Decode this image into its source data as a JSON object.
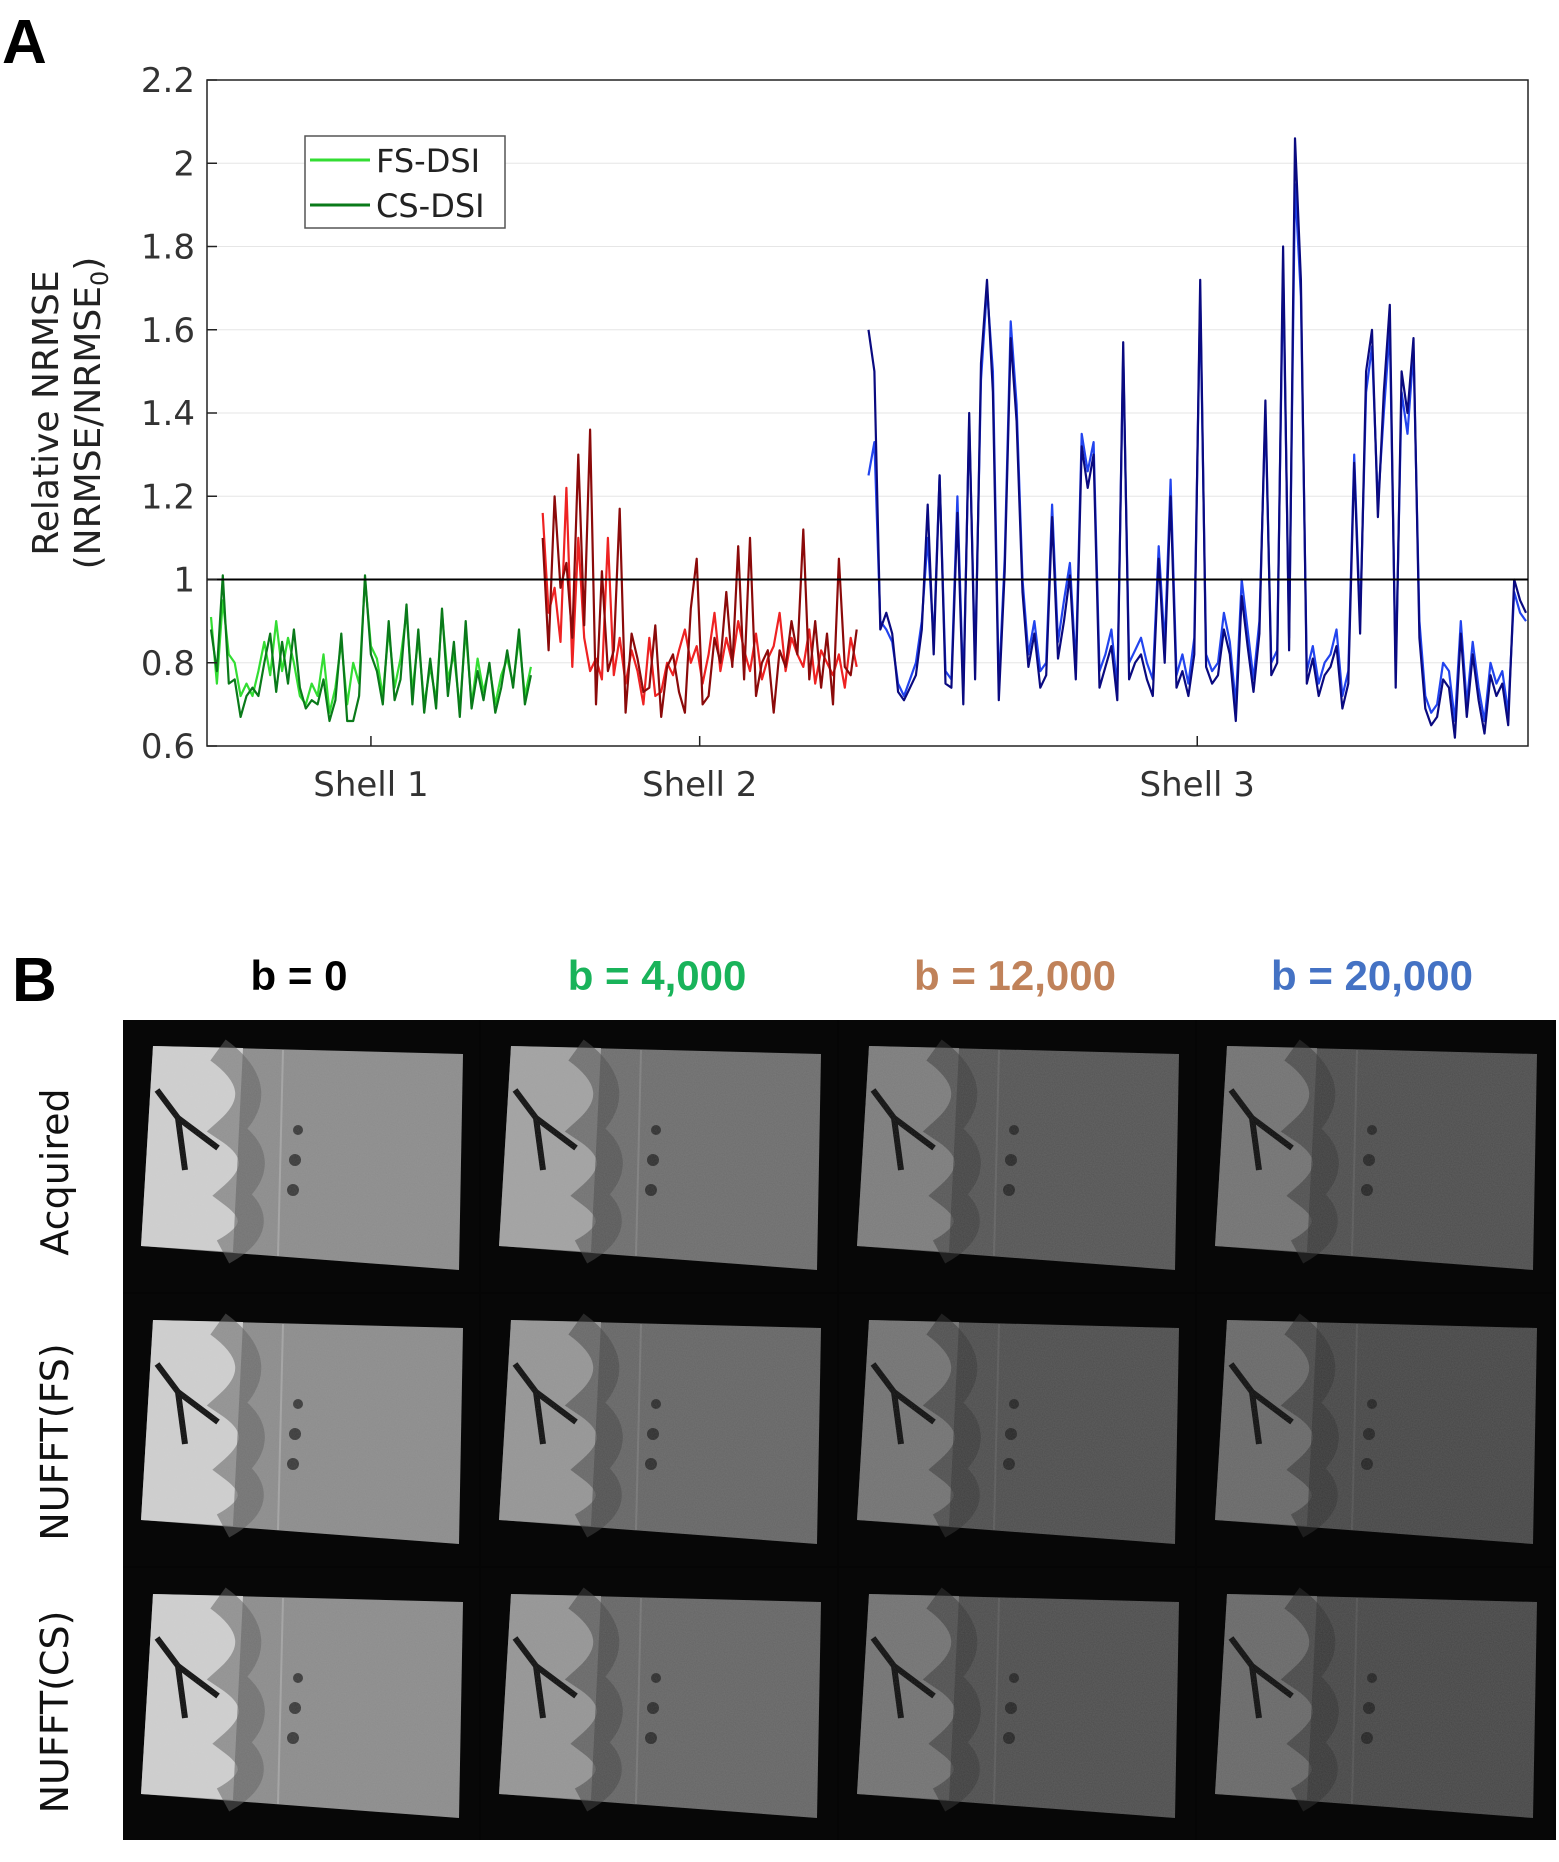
{
  "panel_a_label": "A",
  "panel_b_label": "B",
  "chart_data": {
    "type": "line",
    "xlabel": "",
    "ylabel_line1": "Relative NRMSE",
    "ylabel_line2_main": "(NRMSE/NRMSE",
    "ylabel_line2_sub": "0",
    "ylabel_line2_end": ")",
    "ylim": [
      0.6,
      2.2
    ],
    "yticks": [
      "0.6",
      "0.8",
      "1",
      "1.2",
      "1.4",
      "1.6",
      "1.8",
      "2",
      "2.2"
    ],
    "xticks": [
      "Shell 1",
      "Shell 2",
      "Shell 3"
    ],
    "reference_line": 1,
    "grid": true,
    "legend_position": "top-left",
    "legend": [
      {
        "label": "FS-DSI",
        "color": "#33dd33"
      },
      {
        "label": "CS-DSI",
        "color": "#0a7a1a"
      }
    ],
    "shell_colors": {
      "shell1": {
        "fs": "#33dd33",
        "cs": "#0a7a1a"
      },
      "shell2": {
        "fs": "#ee2222",
        "cs": "#8b0a0a"
      },
      "shell3": {
        "fs": "#2244ee",
        "cs": "#0a0a80"
      }
    },
    "series": [
      {
        "legend_entry": "FS-DSI",
        "shell1": [
          0.91,
          0.75,
          0.95,
          0.82,
          0.8,
          0.72,
          0.75,
          0.72,
          0.78,
          0.85,
          0.77,
          0.9,
          0.78,
          0.86,
          0.8,
          0.72,
          0.7,
          0.75,
          0.72,
          0.82,
          0.68,
          0.74,
          0.85,
          0.7,
          0.8,
          0.75,
          1.0,
          0.84,
          0.81,
          0.72,
          0.88,
          0.74,
          0.81,
          0.92,
          0.73,
          0.86,
          0.7,
          0.79,
          0.71,
          0.92,
          0.76,
          0.82,
          0.69,
          0.88,
          0.7,
          0.81,
          0.73,
          0.79,
          0.7,
          0.77,
          0.81,
          0.75,
          0.86,
          0.72,
          0.79
        ],
        "shell2": [
          1.16,
          0.92,
          0.98,
          0.85,
          1.22,
          0.79,
          1.1,
          0.86,
          0.78,
          0.81,
          0.76,
          1.1,
          0.77,
          0.86,
          0.75,
          0.83,
          0.78,
          0.7,
          0.86,
          0.72,
          0.73,
          0.8,
          0.77,
          0.83,
          0.88,
          0.8,
          0.84,
          0.75,
          0.82,
          0.92,
          0.78,
          0.86,
          0.8,
          0.9,
          0.83,
          0.78,
          0.87,
          0.76,
          0.81,
          0.84,
          0.92,
          0.78,
          0.86,
          0.82,
          0.79,
          0.88,
          0.75,
          0.83,
          0.8,
          0.77,
          0.82,
          0.74,
          0.86,
          0.79
        ],
        "shell3": [
          1.25,
          1.33,
          0.9,
          0.88,
          0.85,
          0.75,
          0.72,
          0.76,
          0.8,
          0.9,
          1.1,
          0.85,
          1.25,
          0.78,
          0.76,
          1.2,
          0.73,
          1.38,
          0.8,
          1.48,
          1.7,
          1.5,
          0.74,
          1.05,
          1.62,
          1.42,
          1.0,
          0.82,
          0.9,
          0.78,
          0.8,
          1.18,
          0.85,
          0.95,
          1.04,
          0.79,
          1.35,
          1.26,
          1.33,
          0.78,
          0.82,
          0.88,
          0.74,
          1.54,
          0.8,
          0.83,
          0.86,
          0.8,
          0.76,
          1.08,
          0.84,
          1.24,
          0.77,
          0.82,
          0.75,
          0.86,
          1.68,
          0.82,
          0.78,
          0.8,
          0.92,
          0.85,
          0.7,
          1.0,
          0.88,
          0.76,
          0.9,
          1.4,
          0.8,
          0.83,
          1.75,
          0.86,
          1.95,
          1.68,
          0.78,
          0.84,
          0.75,
          0.8,
          0.82,
          0.88,
          0.72,
          0.78,
          1.3,
          0.9,
          1.45,
          1.56,
          1.18,
          1.4,
          1.6,
          0.78,
          1.45,
          1.35,
          1.55,
          0.9,
          0.72,
          0.68,
          0.7,
          0.8,
          0.78,
          0.66,
          0.9,
          0.7,
          0.85,
          0.74,
          0.66,
          0.8,
          0.75,
          0.78,
          0.68,
          0.97,
          0.92,
          0.9
        ]
      },
      {
        "legend_entry": "CS-DSI",
        "shell1": [
          0.88,
          0.78,
          1.01,
          0.75,
          0.76,
          0.67,
          0.72,
          0.74,
          0.72,
          0.8,
          0.87,
          0.73,
          0.85,
          0.75,
          0.88,
          0.74,
          0.69,
          0.71,
          0.7,
          0.76,
          0.66,
          0.71,
          0.87,
          0.66,
          0.66,
          0.72,
          1.01,
          0.82,
          0.78,
          0.7,
          0.9,
          0.71,
          0.76,
          0.94,
          0.7,
          0.88,
          0.68,
          0.81,
          0.69,
          0.93,
          0.72,
          0.85,
          0.67,
          0.9,
          0.69,
          0.78,
          0.71,
          0.8,
          0.68,
          0.74,
          0.83,
          0.74,
          0.88,
          0.7,
          0.77
        ],
        "shell2": [
          1.1,
          0.83,
          1.2,
          0.98,
          1.04,
          0.86,
          1.3,
          0.89,
          1.36,
          0.7,
          1.02,
          0.78,
          0.83,
          1.17,
          0.68,
          0.87,
          0.81,
          0.73,
          0.74,
          0.89,
          0.67,
          0.79,
          0.82,
          0.73,
          0.68,
          0.93,
          1.05,
          0.7,
          0.72,
          0.86,
          0.8,
          0.97,
          0.79,
          1.08,
          0.76,
          1.1,
          0.72,
          0.8,
          0.83,
          0.68,
          0.83,
          0.79,
          0.9,
          0.82,
          1.12,
          0.76,
          0.9,
          0.74,
          0.87,
          0.7,
          1.05,
          0.79,
          0.77,
          0.88
        ],
        "shell3": [
          1.6,
          1.5,
          0.88,
          0.92,
          0.87,
          0.73,
          0.71,
          0.74,
          0.77,
          0.88,
          1.18,
          0.82,
          1.25,
          0.75,
          0.74,
          1.16,
          0.7,
          1.4,
          0.76,
          1.52,
          1.72,
          1.45,
          0.71,
          1.02,
          1.58,
          1.38,
          0.97,
          0.79,
          0.87,
          0.74,
          0.77,
          1.15,
          0.81,
          0.9,
          1.01,
          0.76,
          1.32,
          1.22,
          1.3,
          0.74,
          0.79,
          0.84,
          0.71,
          1.57,
          0.76,
          0.8,
          0.82,
          0.76,
          0.72,
          1.05,
          0.8,
          1.2,
          0.74,
          0.78,
          0.72,
          0.82,
          1.72,
          0.79,
          0.75,
          0.77,
          0.88,
          0.82,
          0.66,
          0.96,
          0.84,
          0.73,
          0.87,
          1.43,
          0.77,
          0.8,
          1.8,
          0.83,
          2.06,
          1.72,
          0.75,
          0.81,
          0.72,
          0.77,
          0.79,
          0.84,
          0.69,
          0.75,
          1.28,
          0.87,
          1.5,
          1.6,
          1.15,
          1.45,
          1.66,
          0.74,
          1.5,
          1.4,
          1.58,
          0.86,
          0.69,
          0.65,
          0.67,
          0.76,
          0.74,
          0.62,
          0.87,
          0.67,
          0.82,
          0.71,
          0.63,
          0.77,
          0.72,
          0.75,
          0.65,
          1.0,
          0.95,
          0.92
        ]
      }
    ]
  },
  "panel_b": {
    "columns": [
      {
        "label": "b = 0",
        "color": "#000000"
      },
      {
        "label": "b = 4,000",
        "color": "#19b35a"
      },
      {
        "label": "b = 12,000",
        "color": "#c0825a"
      },
      {
        "label": "b = 20,000",
        "color": "#4472c4"
      }
    ],
    "rows": [
      "Acquired",
      "NUFFT(FS)",
      "NUFFT(CS)"
    ]
  }
}
